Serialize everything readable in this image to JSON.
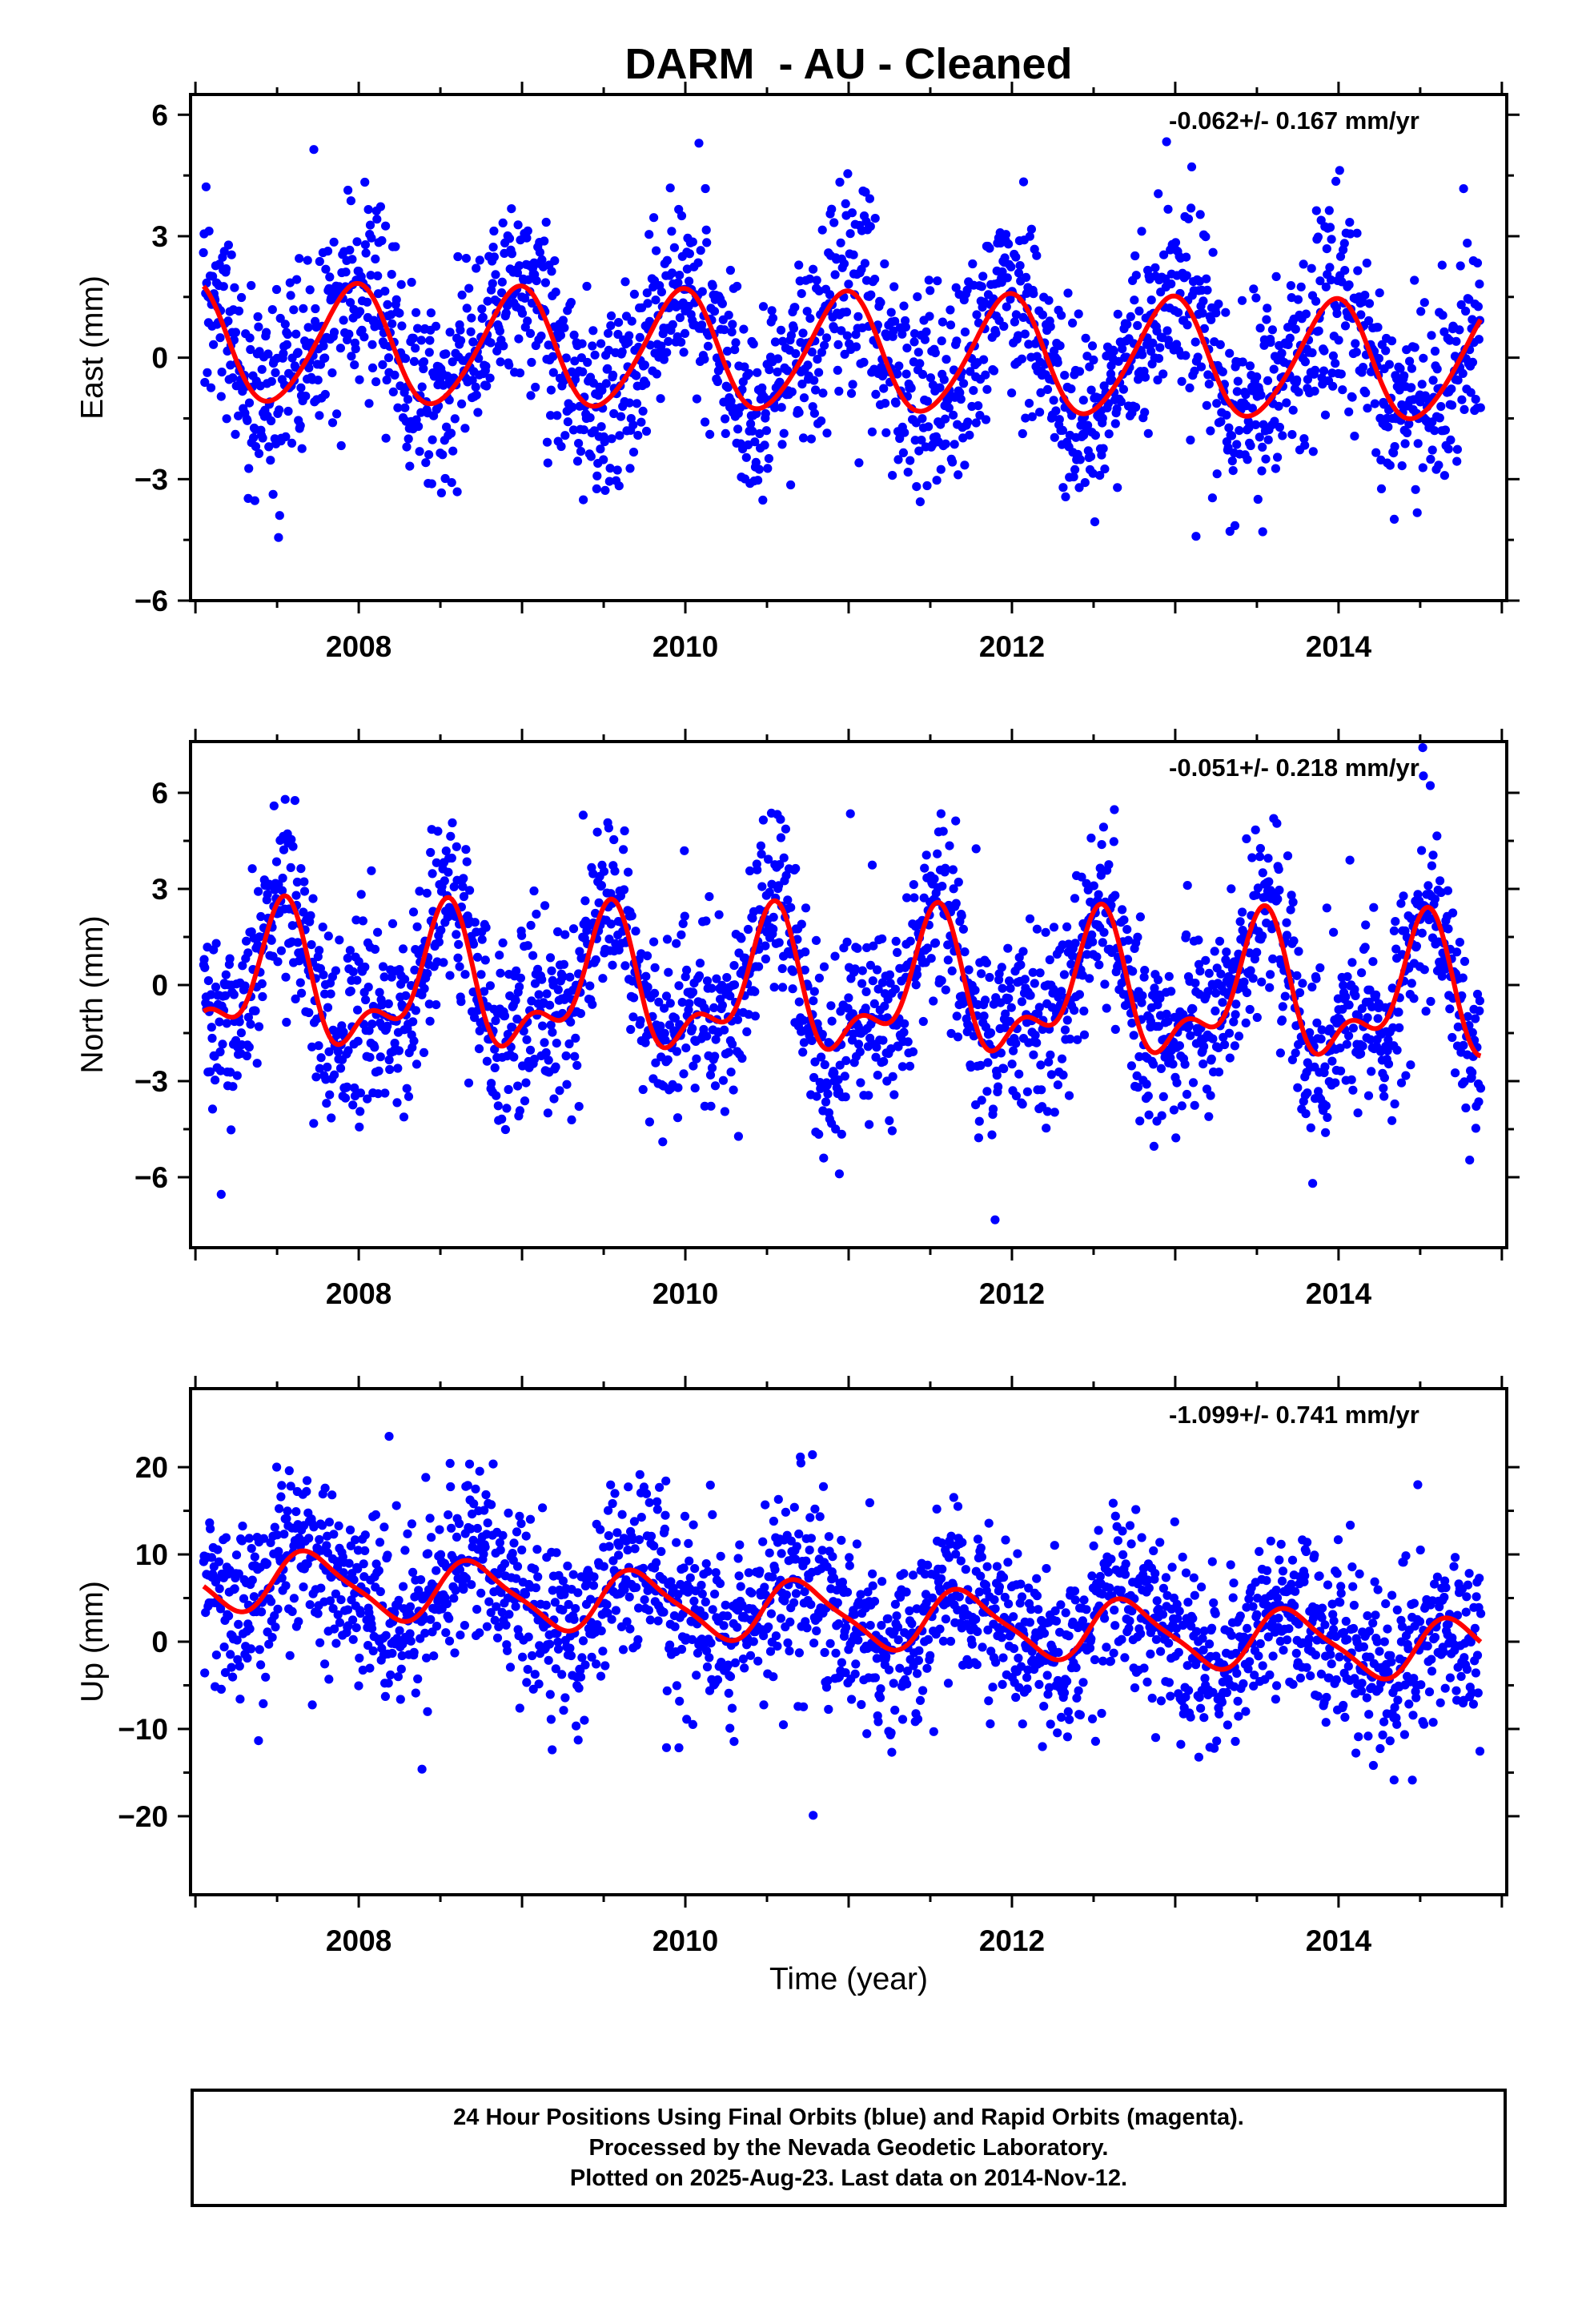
{
  "title": "DARM  - AU - Cleaned",
  "xlabel": "Time (year)",
  "footer": [
    "24 Hour Positions Using Final Orbits (blue) and Rapid Orbits (magenta).",
    "Processed by the Nevada Geodetic Laboratory.",
    "Plotted on 2025-Aug-23. Last data on 2014-Nov-12."
  ],
  "colors": {
    "points": "#0000ff",
    "fit": "#ff0000",
    "frame": "#000000"
  },
  "chart_data": [
    {
      "type": "scatter",
      "ylabel": "East (mm)",
      "rate": "-0.062+/- 0.167 mm/yr",
      "xlim": [
        2006.97,
        2015.03
      ],
      "ylim": [
        -6.0,
        6.5
      ],
      "x_ticks": [
        "2008",
        "2010",
        "2012",
        "2014"
      ],
      "y_ticks": [
        "6",
        "3",
        "0",
        "−3",
        "−6"
      ],
      "y_tick_values": [
        6,
        3,
        0,
        -3,
        -6
      ],
      "data_range": [
        2007.05,
        2014.87
      ],
      "fit": {
        "offset": 0.1,
        "trend": -0.062,
        "annual_amp": 1.45,
        "annual_peak": 2007.97,
        "semi_amp": 0.15,
        "semi_peak": 2007.05
      },
      "scatter_noise_sd": 1.2,
      "point_count": 2100,
      "fit_line": "red curve (annual + semi-annual + trend)"
    },
    {
      "type": "scatter",
      "ylabel": "North (mm)",
      "rate": "-0.051+/- 0.218 mm/yr",
      "xlim": [
        2006.97,
        2015.03
      ],
      "ylim": [
        -8.2,
        7.6
      ],
      "x_ticks": [
        "2008",
        "2010",
        "2012",
        "2014"
      ],
      "y_ticks": [
        "6",
        "3",
        "0",
        "−3",
        "−6"
      ],
      "y_tick_values": [
        6,
        3,
        0,
        -3,
        -6
      ],
      "data_range": [
        2007.05,
        2014.87
      ],
      "fit": {
        "offset": -0.2,
        "trend": -0.051,
        "annual_amp": 1.85,
        "annual_peak": 2007.52,
        "semi_amp": 1.0,
        "semi_peak": 2007.56
      },
      "scatter_noise_sd": 1.45,
      "point_count": 2100,
      "fit_line": "red curve (annual + semi-annual + trend)"
    },
    {
      "type": "scatter",
      "ylabel": "Up (mm)",
      "rate": "-1.099+/- 0.741 mm/yr",
      "xlim": [
        2006.97,
        2015.03
      ],
      "ylim": [
        -29.0,
        29.0
      ],
      "x_ticks": [
        "2008",
        "2010",
        "2012",
        "2014"
      ],
      "y_ticks": [
        "20",
        "10",
        "0",
        "−10",
        "−20"
      ],
      "y_tick_values": [
        20,
        10,
        0,
        -10,
        -20
      ],
      "data_range": [
        2007.05,
        2014.87
      ],
      "fit": {
        "offset": 3.0,
        "trend": -1.099,
        "annual_amp": 3.4,
        "annual_peak": 2007.72,
        "semi_amp": 0.8,
        "semi_peak": 2007.6
      },
      "scatter_noise_sd": 5.0,
      "point_count": 2100,
      "fit_line": "red curve (annual + semi-annual + trend)"
    }
  ]
}
